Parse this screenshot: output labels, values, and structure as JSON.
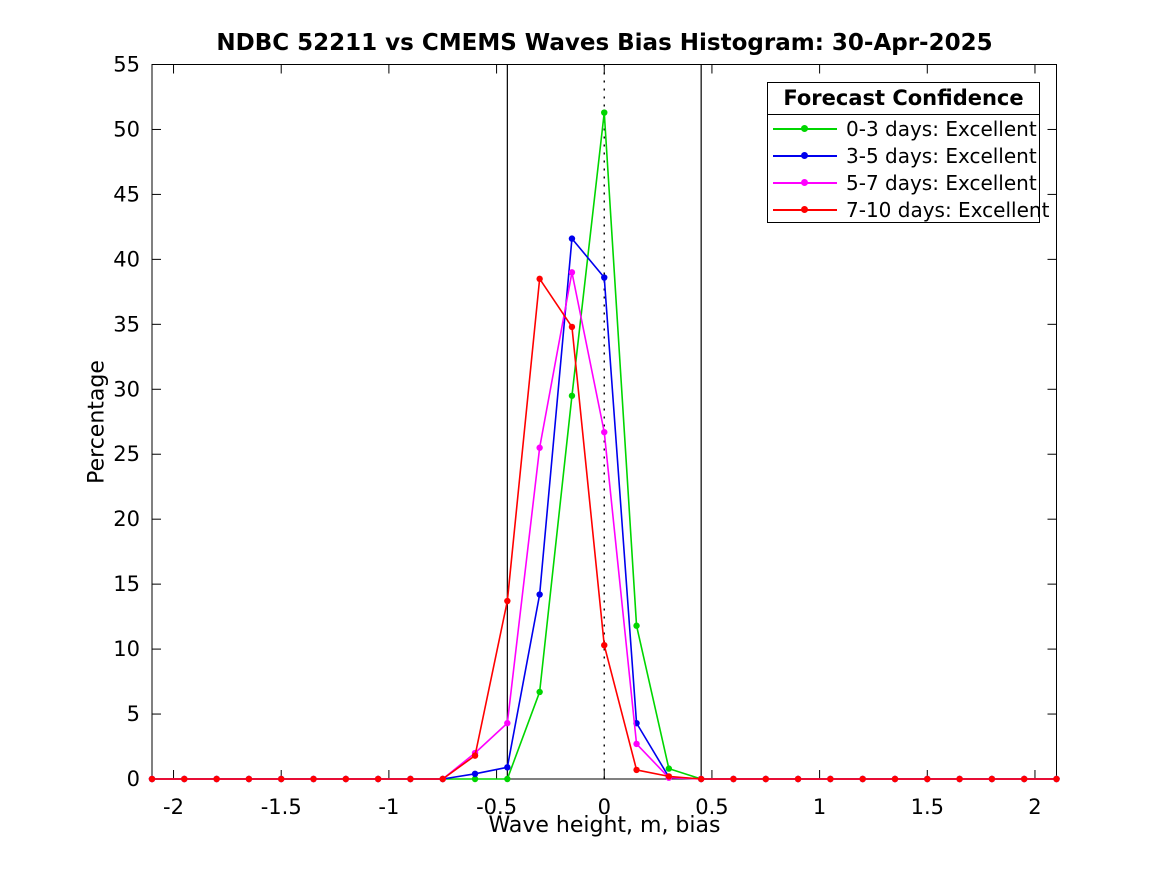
{
  "title": "NDBC 52211 vs CMEMS Waves Bias Histogram: 30-Apr-2025",
  "xlabel": "Wave height, m, bias",
  "ylabel": "Percentage",
  "legend": {
    "title": "Forecast Confidence",
    "entries": [
      {
        "label": "0-3 days: Excellent",
        "color": "#00d600"
      },
      {
        "label": "3-5 days: Excellent",
        "color": "#0000ee"
      },
      {
        "label": "5-7 days: Excellent",
        "color": "#ff00ff"
      },
      {
        "label": "7-10 days: Excellent",
        "color": "#ff0000"
      }
    ]
  },
  "chart_data": {
    "type": "line",
    "title": "NDBC 52211 vs CMEMS Waves Bias Histogram: 30-Apr-2025",
    "xlabel": "Wave height, m, bias",
    "ylabel": "Percentage",
    "xlim": [
      -2.1,
      2.1
    ],
    "ylim": [
      0,
      55
    ],
    "grid": false,
    "legend_position": "top-right",
    "xticks": [
      -2,
      -1.5,
      -1,
      -0.5,
      0,
      0.5,
      1,
      1.5,
      2
    ],
    "xtick_labels": [
      "-2",
      "-1.5",
      "-1",
      "-0.5",
      "0",
      "0.5",
      "1",
      "1.5",
      "2"
    ],
    "yticks": [
      0,
      5,
      10,
      15,
      20,
      25,
      30,
      35,
      40,
      45,
      50,
      55
    ],
    "ytick_labels": [
      "0",
      "5",
      "10",
      "15",
      "20",
      "25",
      "30",
      "35",
      "40",
      "45",
      "50",
      "55"
    ],
    "vlines_solid": [
      -0.45,
      0.45
    ],
    "vlines_dotted": [
      0
    ],
    "x": [
      -2.1,
      -1.95,
      -1.8,
      -1.65,
      -1.5,
      -1.35,
      -1.2,
      -1.05,
      -0.9,
      -0.75,
      -0.6,
      -0.45,
      -0.3,
      -0.15,
      0,
      0.15,
      0.3,
      0.45,
      0.6,
      0.75,
      0.9,
      1.05,
      1.2,
      1.35,
      1.5,
      1.65,
      1.8,
      1.95,
      2.1
    ],
    "series": [
      {
        "name": "0-3 days: Excellent",
        "color": "#00d600",
        "values": [
          0,
          0,
          0,
          0,
          0,
          0,
          0,
          0,
          0,
          0,
          0,
          0,
          6.7,
          29.5,
          51.3,
          11.8,
          0.8,
          0,
          0,
          0,
          0,
          0,
          0,
          0,
          0,
          0,
          0,
          0,
          0
        ]
      },
      {
        "name": "3-5 days: Excellent",
        "color": "#0000ee",
        "values": [
          0,
          0,
          0,
          0,
          0,
          0,
          0,
          0,
          0,
          0,
          0.4,
          0.9,
          14.2,
          41.6,
          38.6,
          4.3,
          0.15,
          0,
          0,
          0,
          0,
          0,
          0,
          0,
          0,
          0,
          0,
          0,
          0
        ]
      },
      {
        "name": "5-7 days: Excellent",
        "color": "#ff00ff",
        "values": [
          0,
          0,
          0,
          0,
          0,
          0,
          0,
          0,
          0,
          0,
          2.0,
          4.3,
          25.5,
          39.0,
          26.7,
          2.7,
          0.1,
          0,
          0,
          0,
          0,
          0,
          0,
          0,
          0,
          0,
          0,
          0,
          0
        ]
      },
      {
        "name": "7-10 days: Excellent",
        "color": "#ff0000",
        "values": [
          0,
          0,
          0,
          0,
          0,
          0,
          0,
          0,
          0,
          0,
          1.8,
          13.7,
          38.5,
          34.8,
          10.3,
          0.7,
          0.2,
          0,
          0,
          0,
          0,
          0,
          0,
          0,
          0,
          0,
          0,
          0,
          0
        ]
      }
    ]
  }
}
